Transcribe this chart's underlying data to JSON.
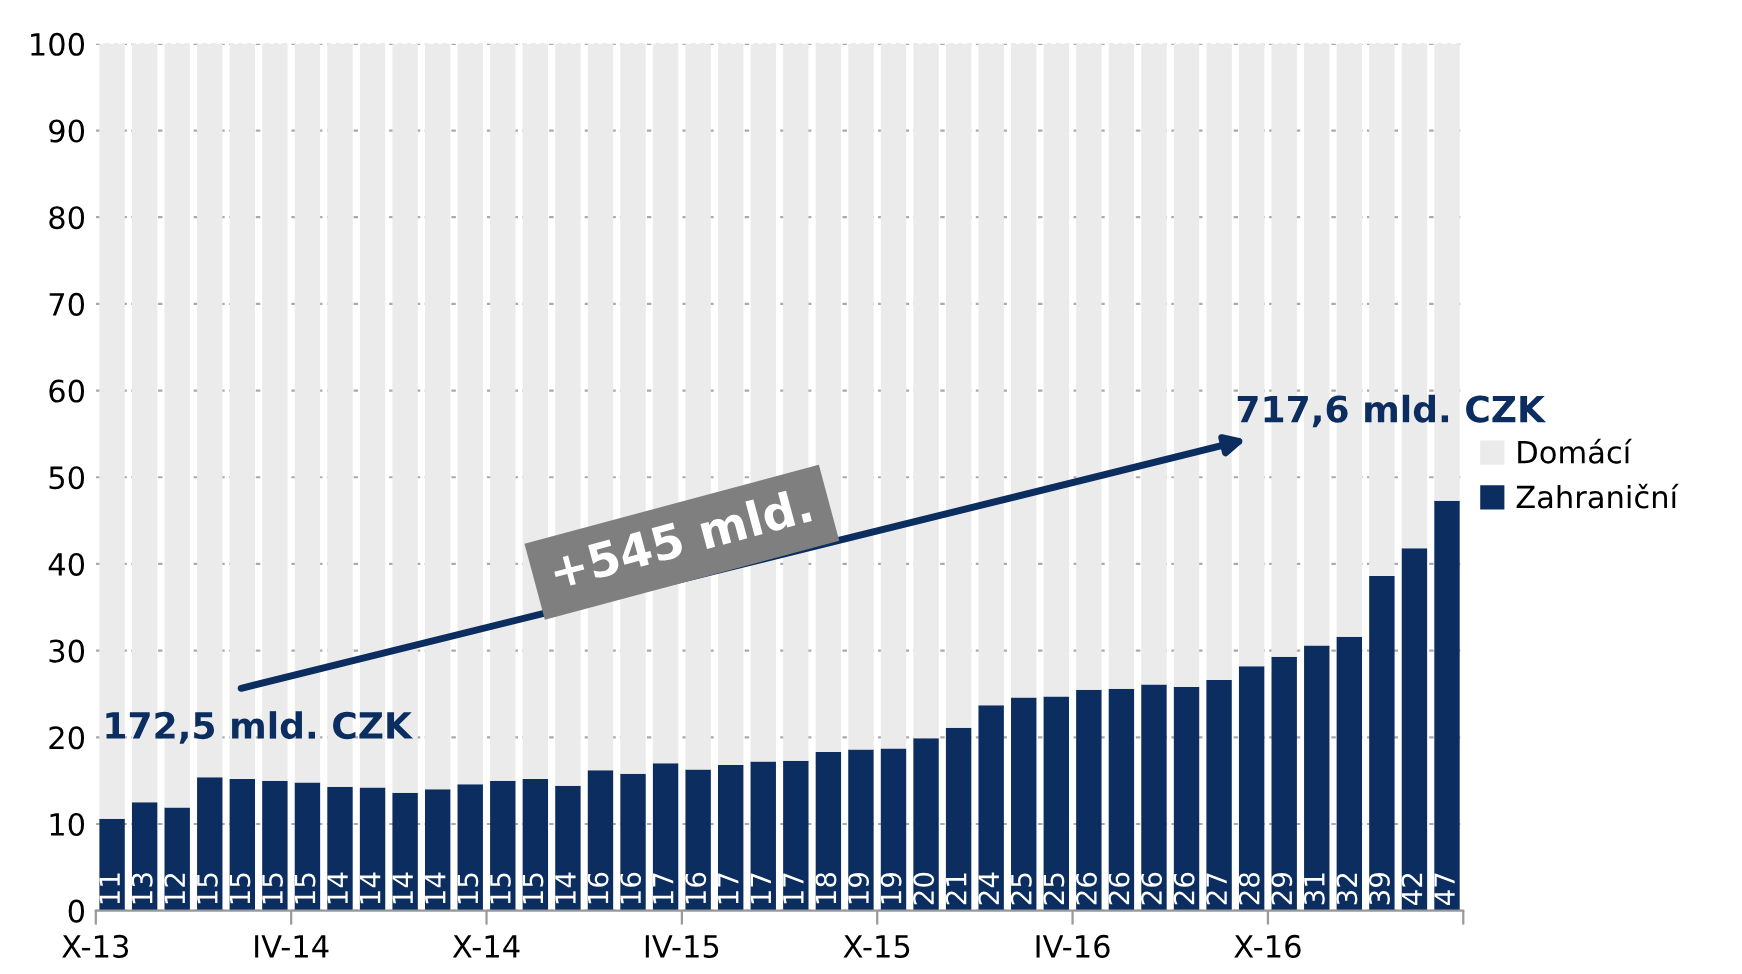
{
  "chart_data": {
    "type": "bar",
    "stacked": true,
    "categories": [
      "X-13",
      null,
      null,
      null,
      null,
      null,
      "IV-14",
      null,
      null,
      null,
      null,
      null,
      "X-14",
      null,
      null,
      null,
      null,
      null,
      "IV-15",
      null,
      null,
      null,
      null,
      null,
      "X-15",
      null,
      null,
      null,
      null,
      null,
      "IV-16",
      null,
      null,
      null,
      null,
      null,
      "X-16",
      null,
      null,
      null,
      null,
      null
    ],
    "series": [
      {
        "name": "Zahraniční",
        "color": "#0b2d5f",
        "values": [
          10.6,
          12.5,
          11.9,
          15.4,
          15.2,
          15.0,
          14.8,
          14.3,
          14.2,
          13.6,
          14.0,
          14.6,
          15.0,
          15.2,
          14.4,
          16.2,
          15.8,
          17.0,
          16.3,
          16.8,
          17.2,
          17.3,
          18.3,
          18.6,
          18.7,
          19.9,
          21.1,
          23.7,
          24.6,
          24.7,
          25.5,
          25.6,
          26.1,
          25.8,
          26.6,
          28.2,
          29.3,
          30.6,
          31.6,
          38.6,
          41.8,
          47.3
        ],
        "value_labels": [
          "11",
          "13",
          "12",
          "15",
          "15",
          "15",
          "15",
          "14",
          "14",
          "14",
          "14",
          "15",
          "15",
          "15",
          "14",
          "16",
          "16",
          "17",
          "16",
          "17",
          "17",
          "17",
          "18",
          "19",
          "19",
          "20",
          "21",
          "24",
          "25",
          "25",
          "26",
          "26",
          "26",
          "26",
          "27",
          "28",
          "29",
          "31",
          "32",
          "39",
          "42",
          "47"
        ]
      },
      {
        "name": "Domácí",
        "color": "#ebebeb",
        "values": [
          89.4,
          87.5,
          88.1,
          84.6,
          84.8,
          85.0,
          85.2,
          85.7,
          85.8,
          86.4,
          86.0,
          85.4,
          85.0,
          84.8,
          85.6,
          83.8,
          84.2,
          83.0,
          83.7,
          83.2,
          82.8,
          82.7,
          81.7,
          81.4,
          81.3,
          80.1,
          78.9,
          76.3,
          75.4,
          75.3,
          74.5,
          74.4,
          73.9,
          74.2,
          73.4,
          71.8,
          70.7,
          69.4,
          68.4,
          61.4,
          58.2,
          52.7
        ]
      }
    ],
    "ylim": [
      0,
      100
    ],
    "yticks": [
      0,
      10,
      20,
      30,
      40,
      50,
      60,
      70,
      80,
      90,
      100
    ],
    "grid": "y",
    "legend": "right",
    "annotations": [
      "172,5 mld. CZK",
      "717,6 mld. CZK",
      "+545 mld."
    ]
  }
}
